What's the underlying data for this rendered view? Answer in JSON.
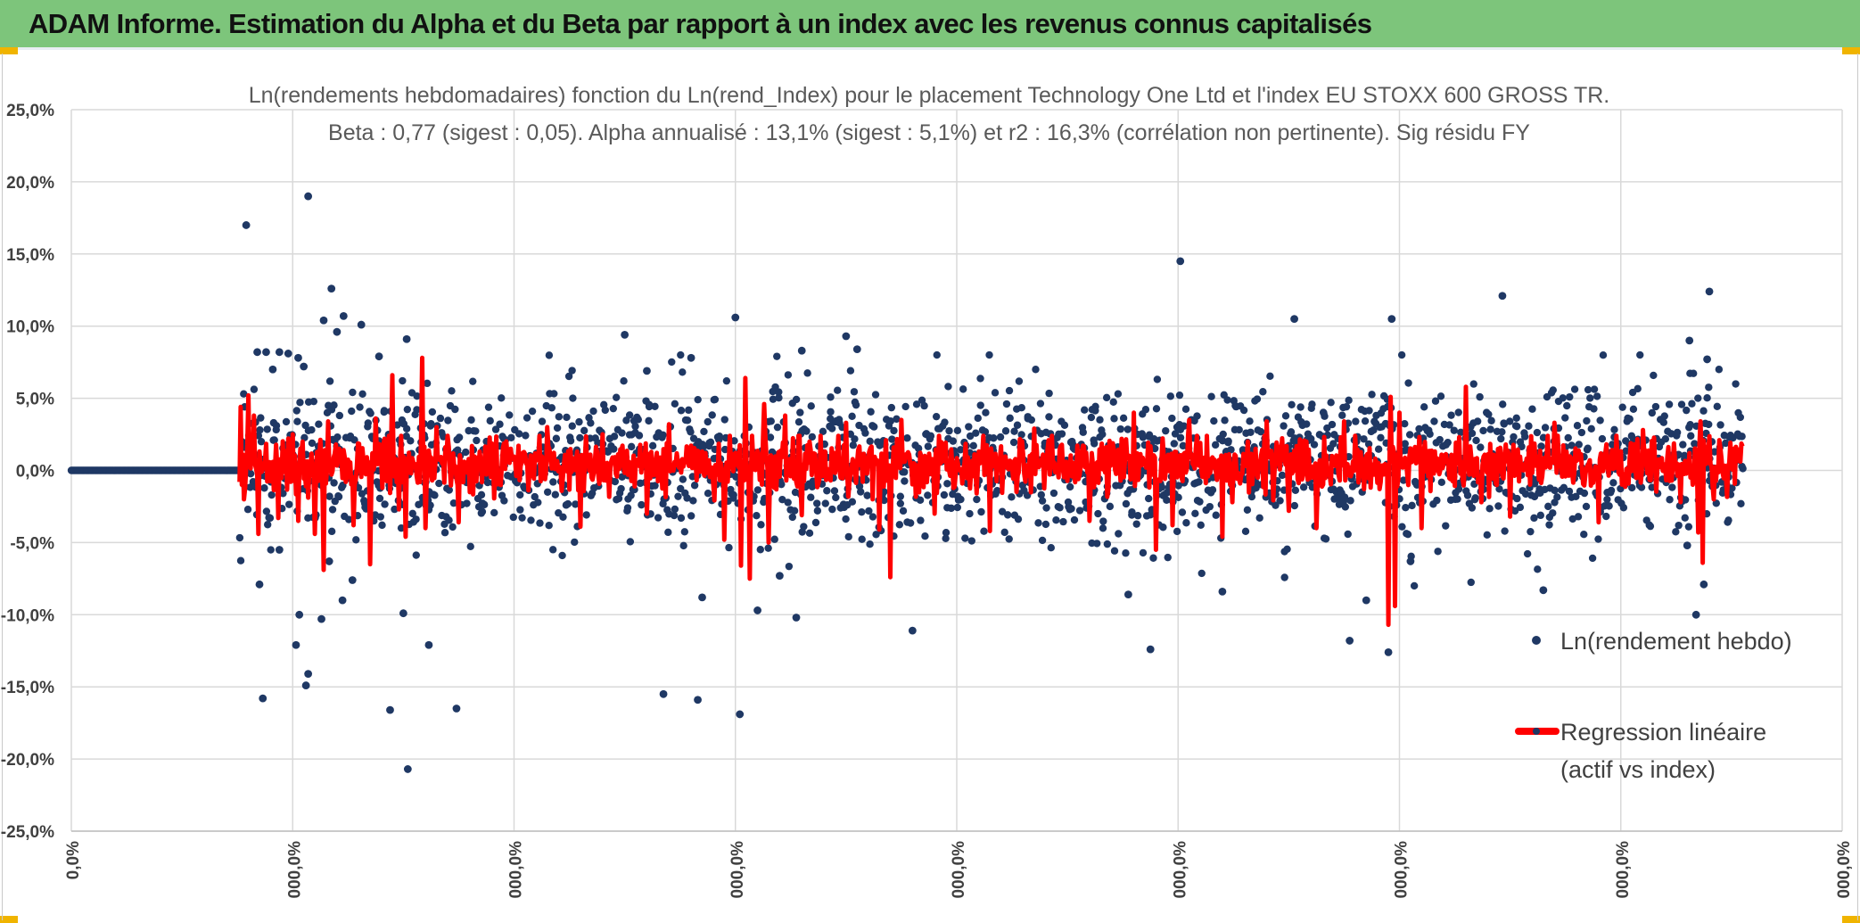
{
  "header": {
    "title": "ADAM Informe. Estimation du Alpha et du Beta par rapport à un index avec les revenus connus capitalisés"
  },
  "colors": {
    "banner": "#7dc57b",
    "points": "#1f3864",
    "regression": "#ff0000",
    "grid": "#d9d9d9"
  },
  "chart_data": {
    "type": "scatter",
    "title_line1": "Ln(rendements hebdomadaires) fonction du Ln(rend_Index) pour le placement Technology One Ltd et l'index EU STOXX 600 GROSS TR.",
    "title_line2": "Beta : 0,77 (sigest : 0,05). Alpha annualisé : 13,1% (sigest : 5,1%) et r2 : 16,3% (corrélation non pertinente). Sig résidu FY",
    "ylim": [
      -25,
      25
    ],
    "ytick_values": [
      25,
      20,
      15,
      10,
      5,
      0,
      -5,
      -10,
      -15,
      -20,
      -25
    ],
    "ytick_labels": [
      "25,0%",
      "20,0%",
      "15,0%",
      "10,0%",
      "5,0%",
      "0,0%",
      "-5,0%",
      "-10,0%",
      "-15,0%",
      "-20,0%",
      "-25,0%"
    ],
    "x_count": 1600,
    "xtick_values": [
      0,
      200,
      400,
      600,
      800,
      1000,
      1200,
      1400,
      1600
    ],
    "xtick_labels": [
      "0,0%",
      "000,0%",
      "000,0%",
      "000,0%",
      "000,0%",
      "000,0%",
      "000,0%",
      "000,0%",
      "000,0%"
    ],
    "zero_segment_end": 150,
    "data_start": 152,
    "data_end": 1510,
    "legend": [
      {
        "label": "Ln(rendement hebdo)",
        "marker": "point"
      },
      {
        "label_line1": "Regression linéaire",
        "label_line2": "(actif vs index)",
        "marker": "line"
      }
    ],
    "series": [
      {
        "name": "Ln(rendement hebdo)",
        "outliers": [
          [
            158,
            17.0
          ],
          [
            214,
            19.0
          ],
          [
            176,
            8.2
          ],
          [
            205,
            7.8
          ],
          [
            235,
            12.6
          ],
          [
            240,
            9.6
          ],
          [
            246,
            10.7
          ],
          [
            262,
            10.1
          ],
          [
            278,
            7.9
          ],
          [
            303,
            9.1
          ],
          [
            228,
            10.4
          ],
          [
            210,
            7.2
          ],
          [
            188,
            8.2
          ],
          [
            196,
            8.1
          ],
          [
            182,
            7.0
          ],
          [
            168,
            8.2
          ],
          [
            170,
            -7.9
          ],
          [
            173,
            -15.8
          ],
          [
            188,
            -5.5
          ],
          [
            203,
            -12.1
          ],
          [
            206,
            -10.0
          ],
          [
            212,
            -14.9
          ],
          [
            214,
            -14.1
          ],
          [
            226,
            -10.3
          ],
          [
            233,
            -6.3
          ],
          [
            245,
            -9.0
          ],
          [
            254,
            -7.6
          ],
          [
            288,
            -16.6
          ],
          [
            300,
            -9.9
          ],
          [
            304,
            -20.7
          ],
          [
            323,
            -12.1
          ],
          [
            348,
            -16.5
          ],
          [
            500,
            9.4
          ],
          [
            520,
            6.9
          ],
          [
            600,
            10.6
          ],
          [
            660,
            8.3
          ],
          [
            700,
            9.3
          ],
          [
            710,
            8.4
          ],
          [
            560,
            7.8
          ],
          [
            535,
            -15.5
          ],
          [
            566,
            -15.9
          ],
          [
            604,
            -16.9
          ],
          [
            620,
            -9.7
          ],
          [
            655,
            -10.2
          ],
          [
            760,
            -11.1
          ],
          [
            570,
            -8.8
          ],
          [
            640,
            -7.3
          ],
          [
            1002,
            14.5
          ],
          [
            975,
            -12.4
          ],
          [
            1040,
            -8.4
          ],
          [
            955,
            -8.6
          ],
          [
            1105,
            10.5
          ],
          [
            1155,
            -11.8
          ],
          [
            1190,
            -12.6
          ],
          [
            1193,
            10.5
          ],
          [
            1170,
            -9.0
          ],
          [
            1210,
            -6.3
          ],
          [
            1293,
            12.1
          ],
          [
            1330,
            -8.3
          ],
          [
            1480,
            12.4
          ],
          [
            1462,
            9.0
          ],
          [
            1468,
            -10.0
          ],
          [
            1478,
            7.7
          ],
          [
            1475,
            -7.9
          ],
          [
            1460,
            -5.2
          ]
        ]
      },
      {
        "name": "Regression linéaire (actif vs index)",
        "spikes": [
          [
            153,
            4.4
          ],
          [
            156,
            -2.0
          ],
          [
            160,
            5.2
          ],
          [
            165,
            3.8
          ],
          [
            169,
            -4.4
          ],
          [
            187,
            -3.3
          ],
          [
            200,
            2.5
          ],
          [
            205,
            -3.5
          ],
          [
            220,
            -4.4
          ],
          [
            228,
            -6.9
          ],
          [
            232,
            3.4
          ],
          [
            255,
            -3.8
          ],
          [
            270,
            -6.5
          ],
          [
            275,
            3.6
          ],
          [
            290,
            6.6
          ],
          [
            296,
            -2.7
          ],
          [
            302,
            -4.6
          ],
          [
            317,
            7.8
          ],
          [
            320,
            -4.0
          ],
          [
            330,
            3.0
          ],
          [
            350,
            -3.6
          ],
          [
            430,
            3.0
          ],
          [
            460,
            -3.9
          ],
          [
            480,
            2.5
          ],
          [
            520,
            -3.0
          ],
          [
            540,
            3.2
          ],
          [
            590,
            -4.8
          ],
          [
            605,
            -6.6
          ],
          [
            609,
            6.4
          ],
          [
            613,
            -7.5
          ],
          [
            626,
            4.6
          ],
          [
            630,
            -5.0
          ],
          [
            645,
            3.8
          ],
          [
            660,
            -3.1
          ],
          [
            700,
            3.3
          ],
          [
            730,
            -4.1
          ],
          [
            740,
            -7.4
          ],
          [
            750,
            3.5
          ],
          [
            780,
            -3.0
          ],
          [
            830,
            -4.2
          ],
          [
            870,
            2.9
          ],
          [
            920,
            -3.5
          ],
          [
            960,
            4.0
          ],
          [
            980,
            -5.5
          ],
          [
            995,
            -3.8
          ],
          [
            1010,
            3.5
          ],
          [
            1040,
            -4.6
          ],
          [
            1080,
            3.4
          ],
          [
            1100,
            -2.8
          ],
          [
            1125,
            -4.0
          ],
          [
            1150,
            3.4
          ],
          [
            1190,
            -10.7
          ],
          [
            1192,
            5.1
          ],
          [
            1196,
            -9.4
          ],
          [
            1200,
            4.0
          ],
          [
            1220,
            -4.0
          ],
          [
            1260,
            5.8
          ],
          [
            1300,
            -3.2
          ],
          [
            1340,
            3.3
          ],
          [
            1380,
            -3.6
          ],
          [
            1420,
            2.8
          ],
          [
            1470,
            -4.3
          ],
          [
            1472,
            3.4
          ],
          [
            1474,
            -6.4
          ],
          [
            1490,
            1.5
          ],
          [
            1505,
            1.2
          ]
        ]
      }
    ]
  }
}
